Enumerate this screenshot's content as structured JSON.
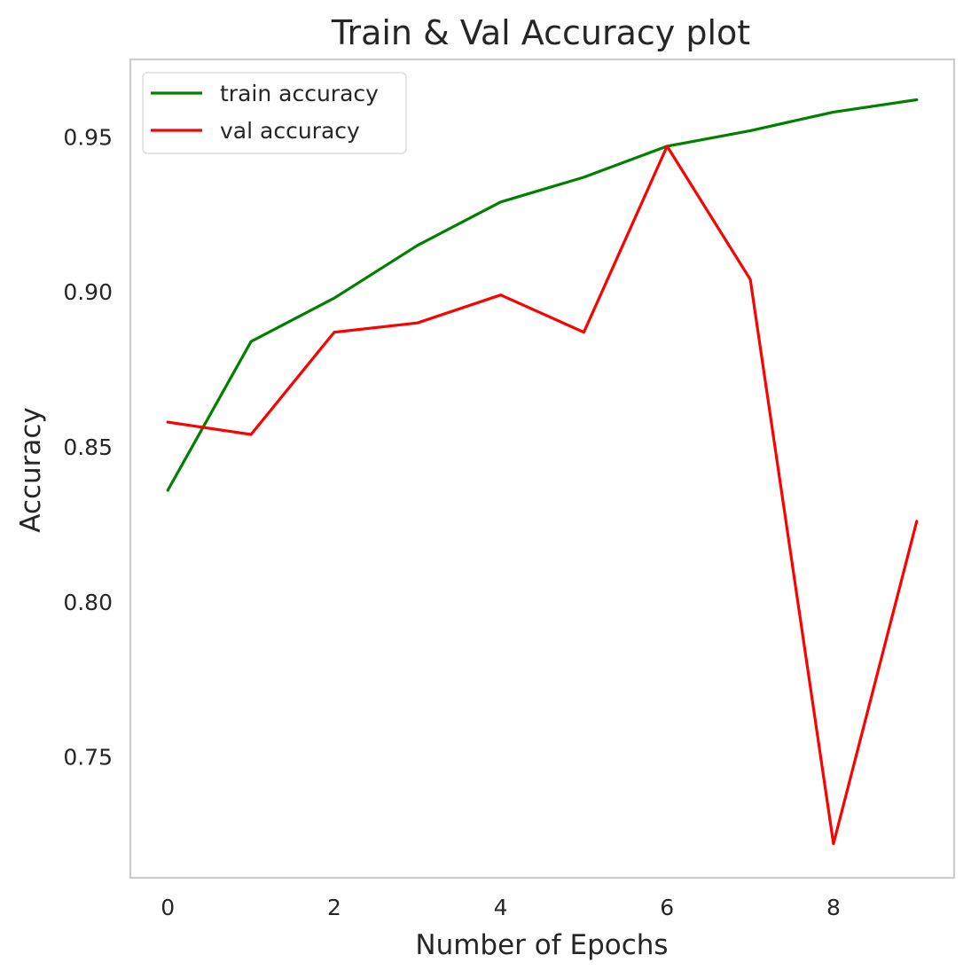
{
  "chart_data": {
    "type": "line",
    "title": "Train & Val Accuracy plot",
    "xlabel": "Number of Epochs",
    "ylabel": "Accuracy",
    "x": [
      0,
      1,
      2,
      3,
      4,
      5,
      6,
      7,
      8,
      9
    ],
    "xlim": [
      -0.45,
      9.45
    ],
    "ylim": [
      0.711,
      0.975
    ],
    "xticks": [
      0,
      2,
      4,
      6,
      8
    ],
    "yticks": [
      0.75,
      0.8,
      0.85,
      0.9,
      0.95
    ],
    "grid": false,
    "legend_position": "top-left",
    "series": [
      {
        "name": "train accuracy",
        "color": "#008000",
        "values": [
          0.836,
          0.884,
          0.898,
          0.915,
          0.929,
          0.937,
          0.947,
          0.952,
          0.958,
          0.962
        ]
      },
      {
        "name": "val accuracy",
        "color": "#ff0000",
        "values": [
          0.858,
          0.854,
          0.887,
          0.89,
          0.899,
          0.887,
          0.947,
          0.904,
          0.722,
          0.826
        ]
      }
    ]
  }
}
